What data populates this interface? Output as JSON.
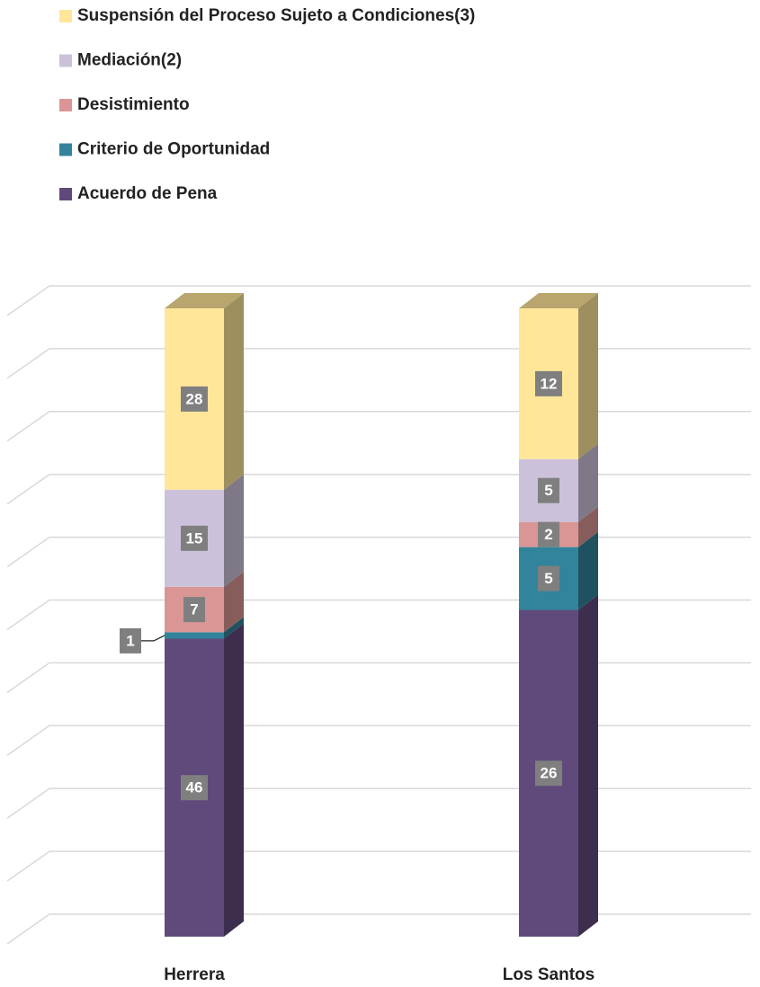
{
  "chart_data": {
    "type": "bar",
    "stacking": "percent",
    "categories": [
      "Herrera",
      "Los Santos"
    ],
    "series": [
      {
        "name": "Acuerdo de Pena",
        "color": "#604a7b",
        "values": [
          46,
          26
        ]
      },
      {
        "name": "Criterio de Oportunidad",
        "color": "#31849b",
        "values": [
          1,
          5
        ]
      },
      {
        "name": "Desistimiento",
        "color": "#d99694",
        "values": [
          7,
          2
        ]
      },
      {
        "name": "Mediación(2)",
        "color": "#ccc1da",
        "values": [
          15,
          5
        ]
      },
      {
        "name": "Suspensión del Proceso Sujeto a Condiciones(3)",
        "color": "#ffe699",
        "values": [
          28,
          12
        ]
      }
    ],
    "ylim": [
      0,
      100
    ],
    "yticks": [
      0,
      10,
      20,
      30,
      40,
      50,
      60,
      70,
      80,
      90,
      100
    ],
    "grid": true,
    "legend": "top-left"
  }
}
